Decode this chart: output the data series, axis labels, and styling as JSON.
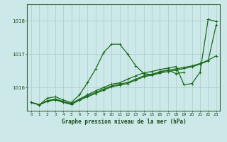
{
  "bg_color": "#cce8e8",
  "grid_color": "#aacccc",
  "line_color": "#1a6b1a",
  "markersize": 3.5,
  "linewidth": 0.9,
  "title": "Graphe pression niveau de la mer (hPa)",
  "xlim": [
    -0.5,
    23.5
  ],
  "ylim": [
    1015.3,
    1018.5
  ],
  "yticks": [
    1016,
    1017,
    1018
  ],
  "xticks": [
    0,
    1,
    2,
    3,
    4,
    5,
    6,
    7,
    8,
    9,
    10,
    11,
    12,
    13,
    14,
    15,
    16,
    17,
    18,
    19,
    20,
    21,
    22,
    23
  ],
  "series_a": [
    1015.55,
    1015.48,
    1015.68,
    1015.72,
    1015.62,
    1015.55,
    1015.78,
    1016.15,
    1016.55,
    1017.05,
    1017.3,
    1017.3,
    1017.0,
    1016.65,
    1016.42,
    1016.38,
    1016.48,
    1016.52,
    1016.42,
    1016.45,
    null,
    null,
    null,
    null
  ],
  "series_b": [
    1015.55,
    1015.48,
    1015.6,
    1015.65,
    1015.57,
    1015.52,
    1015.65,
    1015.75,
    1015.85,
    1015.95,
    1016.05,
    1016.1,
    1016.15,
    1016.25,
    1016.35,
    1016.4,
    1016.46,
    1016.52,
    1016.56,
    1016.6,
    1016.65,
    1016.72,
    1016.82,
    1016.95
  ],
  "series_c": [
    1015.55,
    1015.48,
    1015.58,
    1015.63,
    1015.55,
    1015.49,
    1015.62,
    1015.72,
    1015.82,
    1015.92,
    1016.02,
    1016.07,
    1016.12,
    1016.22,
    1016.32,
    1016.37,
    1016.43,
    1016.48,
    1016.52,
    1016.57,
    1016.62,
    1016.7,
    1016.8,
    1017.88
  ],
  "series_d": [
    1015.55,
    1015.48,
    1015.6,
    1015.65,
    1015.57,
    1015.5,
    1015.65,
    1015.78,
    1015.9,
    1016.0,
    1016.1,
    1016.14,
    1016.25,
    1016.35,
    1016.44,
    1016.48,
    1016.54,
    1016.58,
    1016.63,
    1016.08,
    1016.12,
    1016.46,
    1018.05,
    1017.98
  ]
}
